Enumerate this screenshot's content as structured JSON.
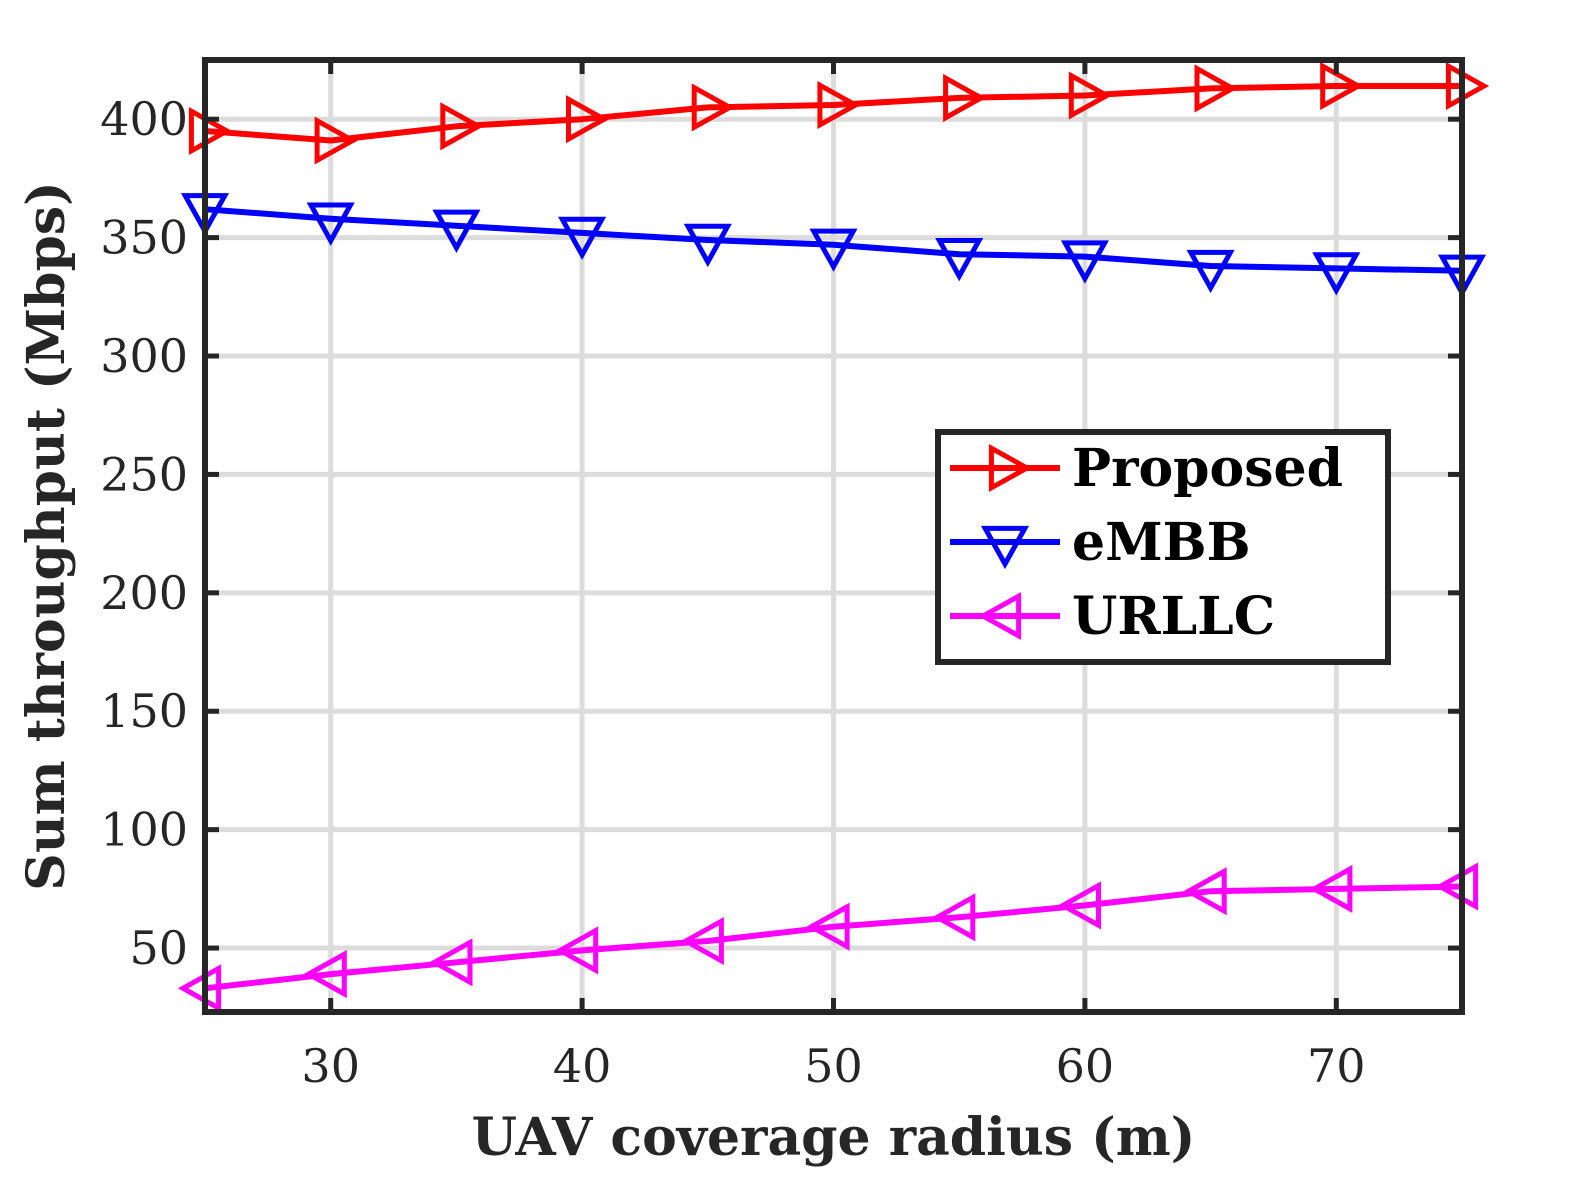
{
  "chart_data": {
    "type": "line",
    "title": "",
    "xlabel": "UAV coverage radius (m)",
    "ylabel": "Sum throughput (Mbps)",
    "xlim": [
      25,
      75
    ],
    "ylim": [
      23,
      425
    ],
    "xticks": [
      30,
      40,
      50,
      60,
      70
    ],
    "yticks": [
      50,
      100,
      150,
      200,
      250,
      300,
      350,
      400
    ],
    "grid": true,
    "legend_position": "center-right",
    "x": [
      25,
      30,
      35,
      40,
      45,
      50,
      55,
      60,
      65,
      70,
      75
    ],
    "series": [
      {
        "name": "Proposed",
        "color": "#ff0000",
        "marker": "triangle-right",
        "values": [
          395,
          391,
          397,
          400,
          405,
          406,
          409,
          410,
          413,
          414,
          414
        ]
      },
      {
        "name": "eMBB",
        "color": "#0000ff",
        "marker": "triangle-down",
        "values": [
          362,
          358,
          355,
          352,
          349,
          347,
          343,
          342,
          338,
          337,
          336
        ]
      },
      {
        "name": "URLLC",
        "color": "#ff00ff",
        "marker": "triangle-left",
        "values": [
          33,
          39,
          44,
          49,
          53,
          59,
          63,
          68,
          74,
          75,
          76
        ]
      }
    ]
  }
}
